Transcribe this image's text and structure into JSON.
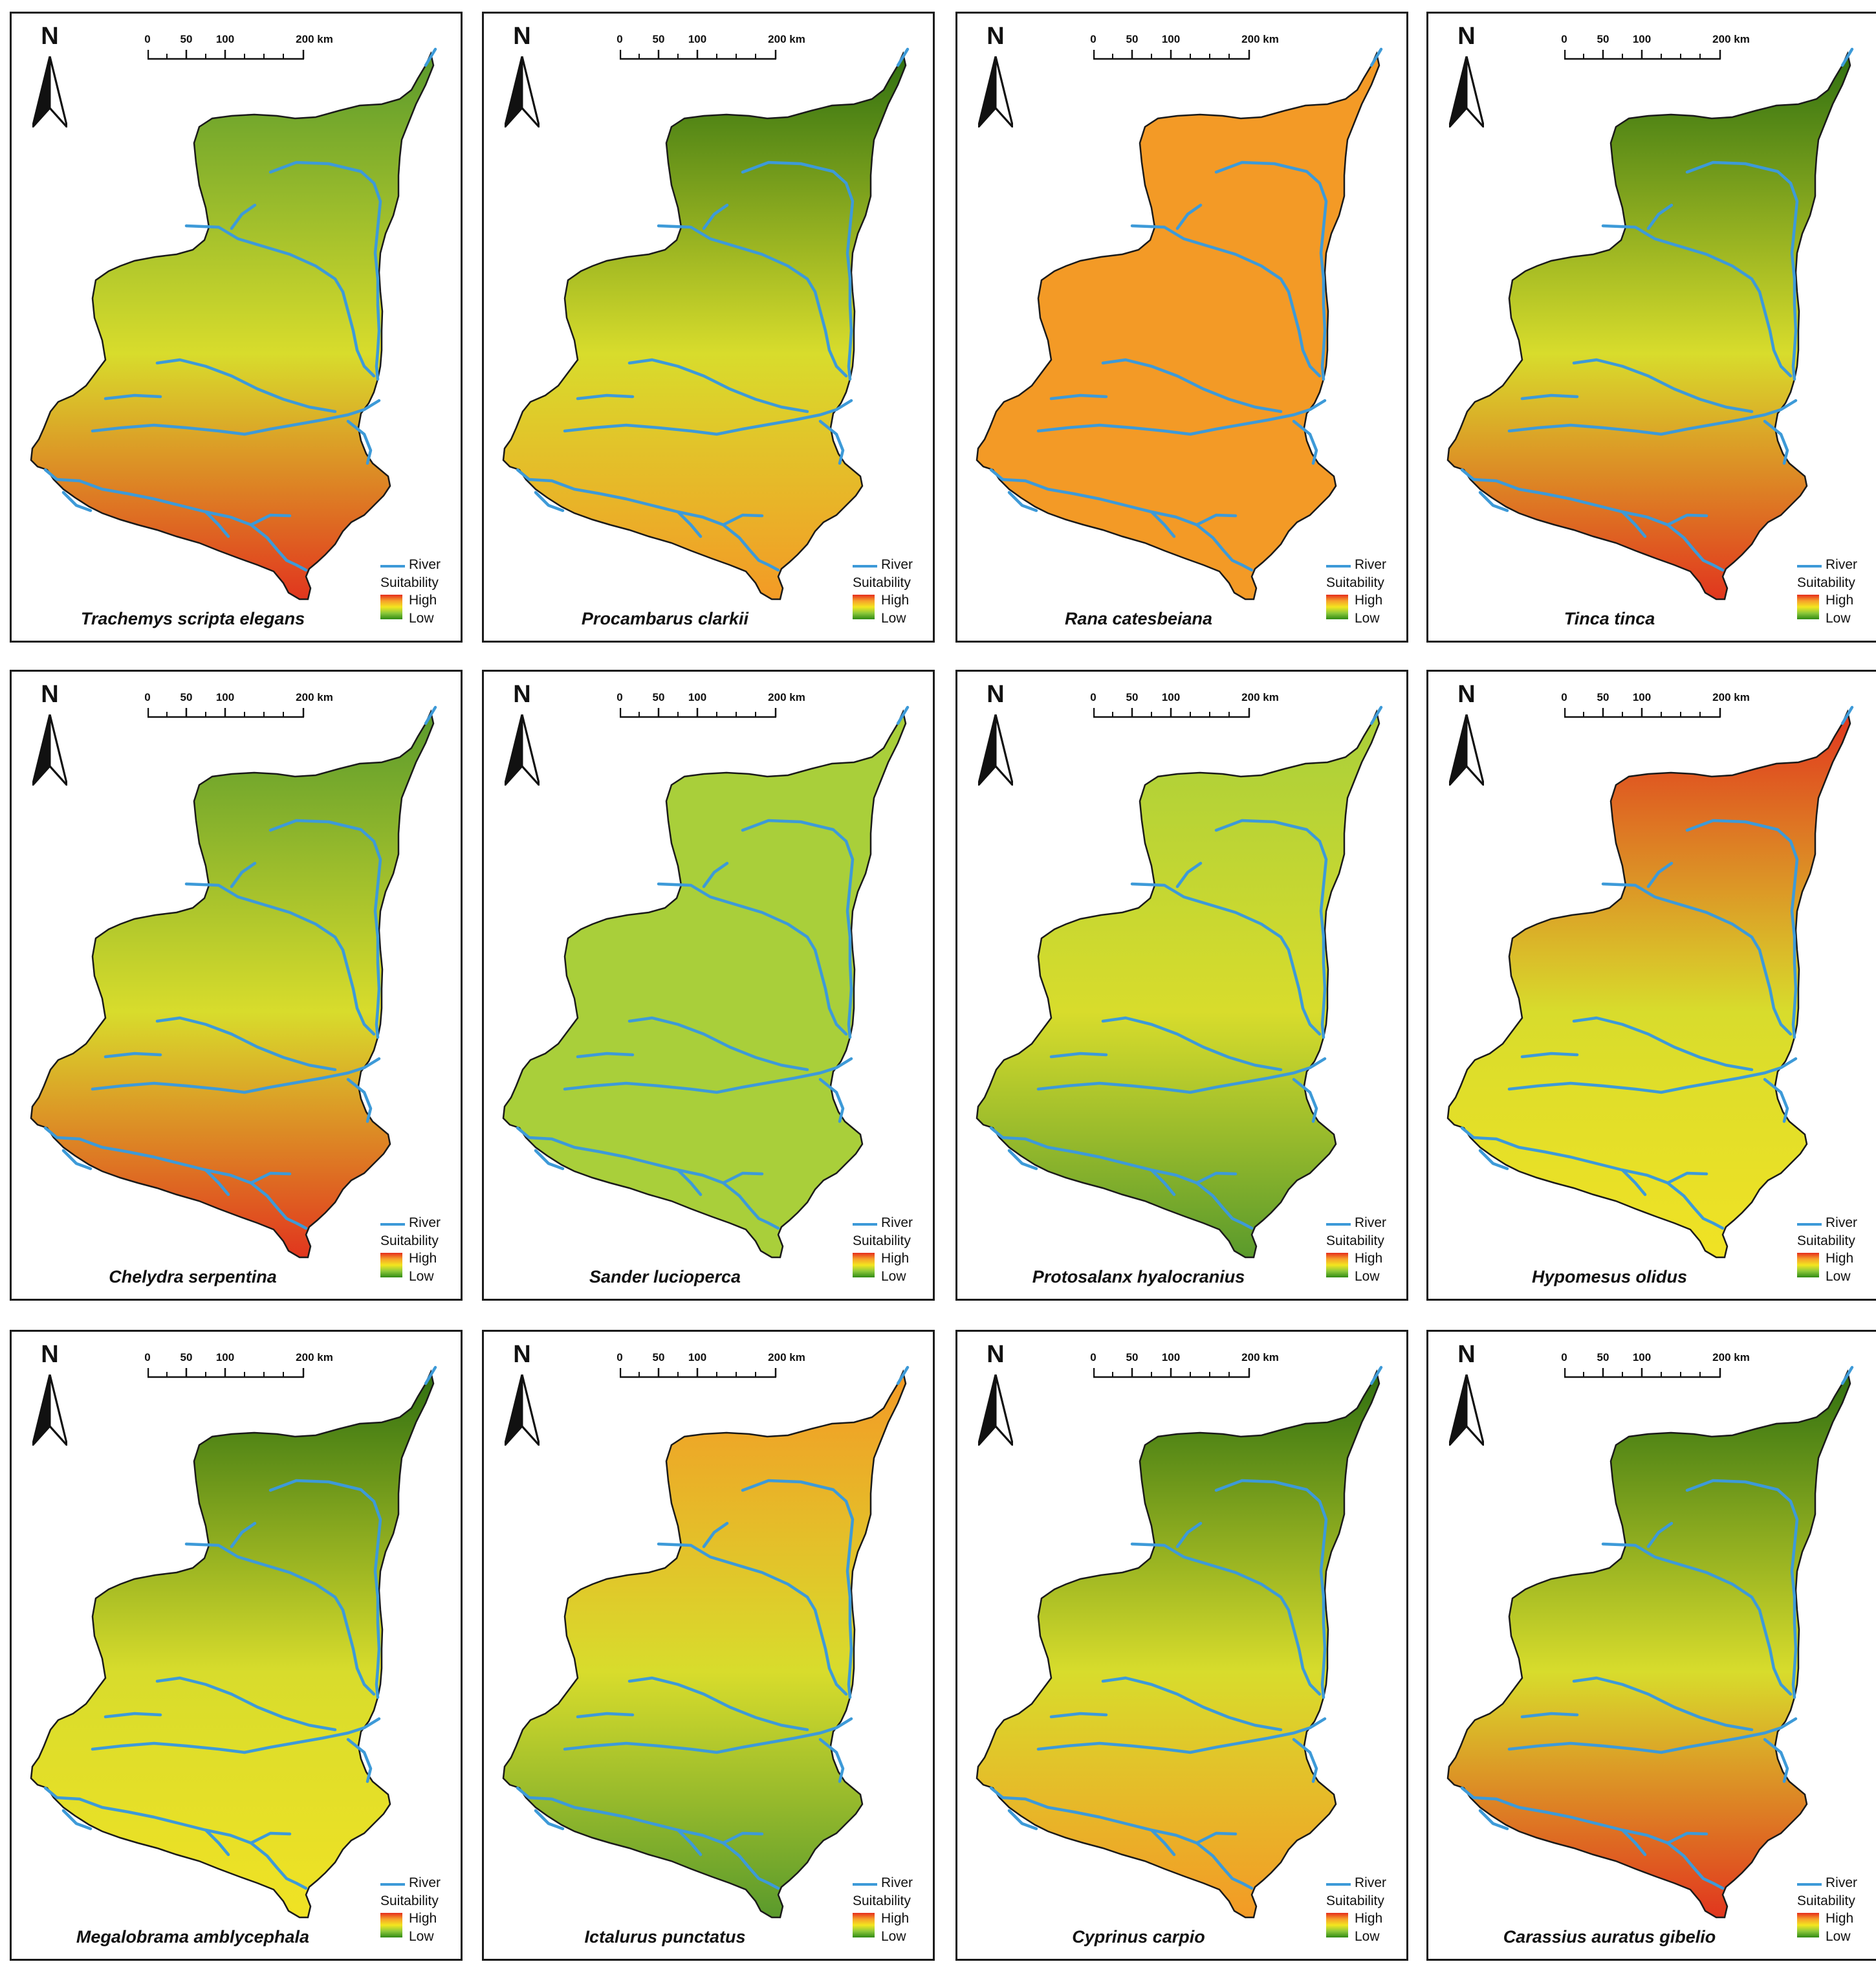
{
  "legend": {
    "river": "River",
    "suitability": "Suitability",
    "high": "High",
    "low": "Low"
  },
  "north_label": "N",
  "scale_labels": [
    "0",
    "50",
    "100",
    "200 km"
  ],
  "colors": {
    "river": "#3d9ad8",
    "high": "#e52b1c",
    "mid": "#f3e61f",
    "low": "#2f6f10"
  },
  "panels": [
    {
      "species": "Trachemys scripta elegans",
      "north": "green",
      "south": "red"
    },
    {
      "species": "Procambarus clarkii",
      "north": "darkgreen",
      "south": "orange"
    },
    {
      "species": "Rana catesbeiana",
      "north": "orange",
      "south": "orange"
    },
    {
      "species": "Tinca tinca",
      "north": "darkgreen",
      "south": "red"
    },
    {
      "species": "Chelydra serpentina",
      "north": "green",
      "south": "red"
    },
    {
      "species": "Sander lucioperca",
      "north": "yellowgreen",
      "south": "yellowgreen"
    },
    {
      "species": "Protosalanx hyalocranius",
      "north": "yellowgreen",
      "south": "green"
    },
    {
      "species": "Hypomesus olidus",
      "north": "red",
      "south": "yellow"
    },
    {
      "species": "Megalobrama amblycephala",
      "north": "darkgreen",
      "south": "yellow"
    },
    {
      "species": "Ictalurus punctatus",
      "north": "orange",
      "south": "green"
    },
    {
      "species": "Cyprinus carpio",
      "north": "darkgreen",
      "south": "orange"
    },
    {
      "species": "Carassius auratus gibelio",
      "north": "darkgreen",
      "south": "red"
    }
  ]
}
